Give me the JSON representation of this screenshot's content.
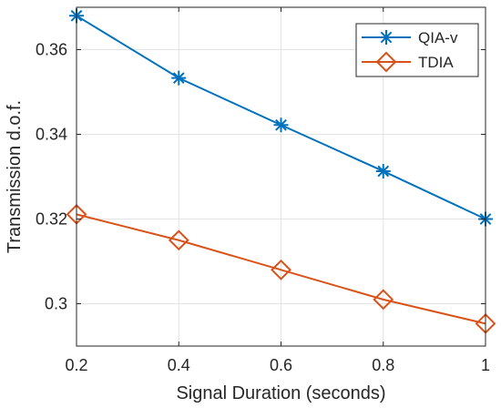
{
  "chart_data": {
    "type": "line",
    "title": "",
    "xlabel": "Signal Duration (seconds)",
    "ylabel": "Transmission d.o.f.",
    "x": [
      0.2,
      0.4,
      0.6,
      0.8,
      1.0
    ],
    "xlim": [
      0.2,
      1.0
    ],
    "ylim": [
      0.29,
      0.37
    ],
    "xticks": [
      0.2,
      0.4,
      0.6,
      0.8,
      1.0
    ],
    "xtick_labels": [
      "0.2",
      "0.4",
      "0.6",
      "0.8",
      "1"
    ],
    "yticks": [
      0.3,
      0.32,
      0.34,
      0.36
    ],
    "ytick_labels": [
      "0.3",
      "0.32",
      "0.34",
      "0.36"
    ],
    "grid": true,
    "legend_position": "top-right",
    "series": [
      {
        "name": "QIA-v",
        "marker": "asterisk",
        "color": "#0072bd",
        "values": [
          0.368,
          0.3533,
          0.3422,
          0.3313,
          0.32
        ]
      },
      {
        "name": "TDIA",
        "marker": "diamond",
        "color": "#d95319",
        "values": [
          0.3211,
          0.315,
          0.308,
          0.301,
          0.2953
        ]
      }
    ]
  }
}
